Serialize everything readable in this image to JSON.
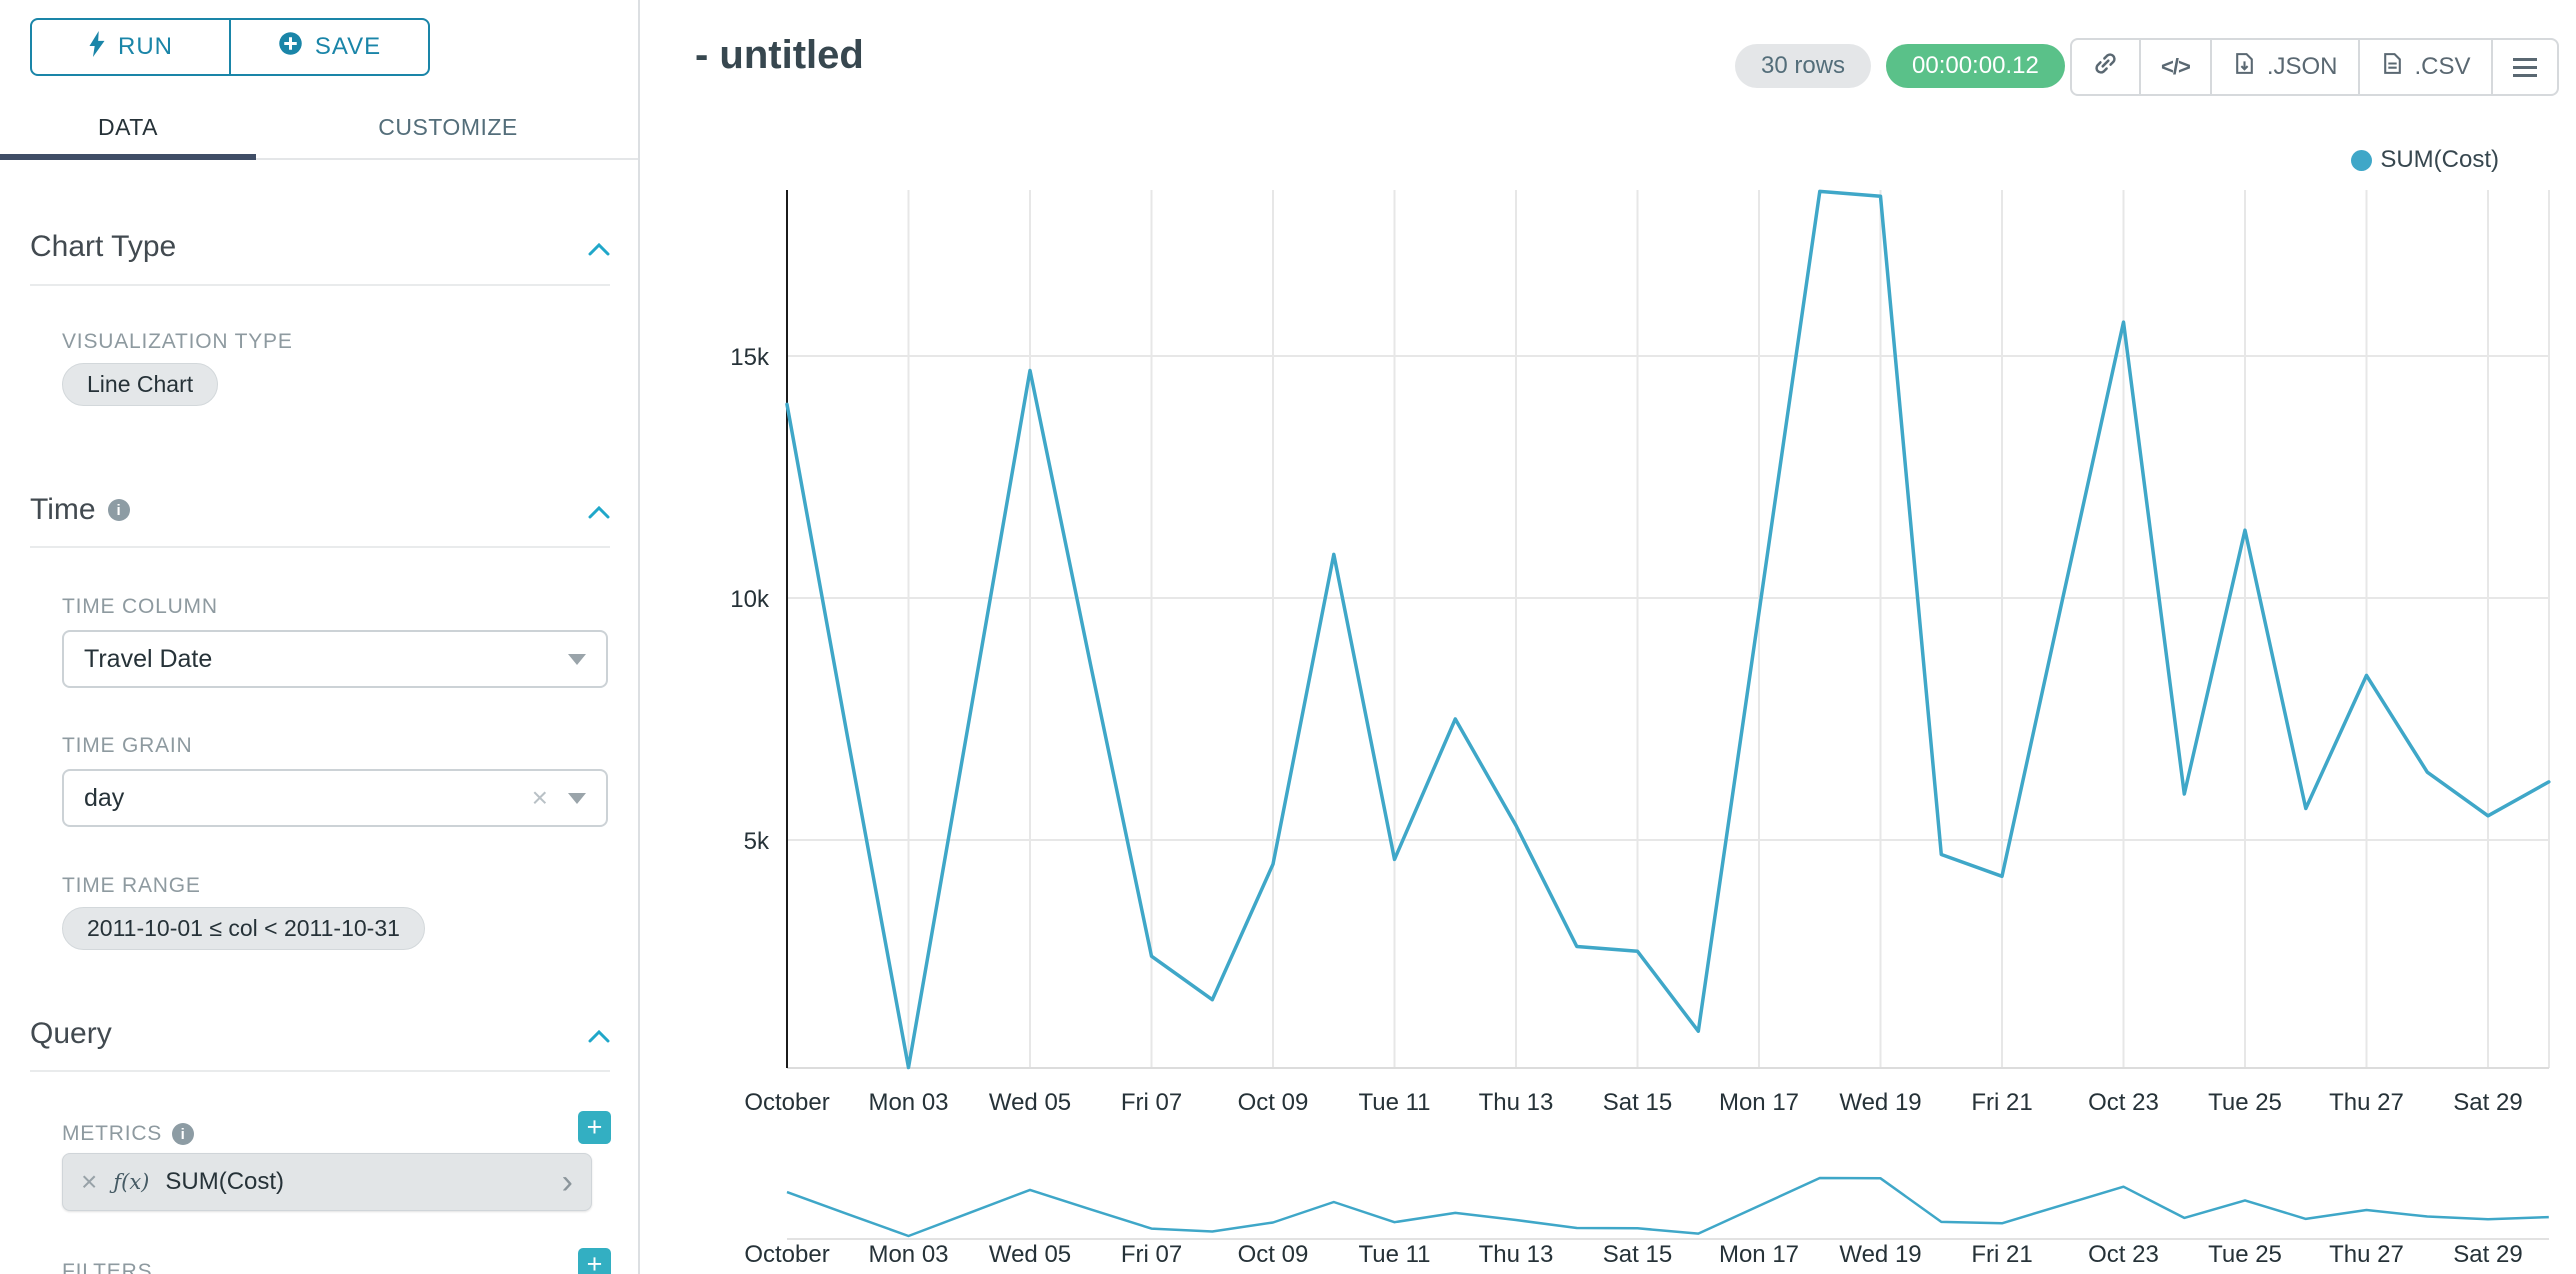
{
  "colors": {
    "accent_teal": "#1a85a8",
    "add_button": "#33afc2",
    "success_green": "#5ac189",
    "line": "#3fa7c8",
    "tab_underline": "#3f4d66"
  },
  "toolbar": {
    "run": "RUN",
    "save": "SAVE"
  },
  "tabs": {
    "data": "DATA",
    "customize": "CUSTOMIZE"
  },
  "panel": {
    "chart_type": {
      "title": "Chart Type",
      "visualization_type_label": "VISUALIZATION TYPE",
      "visualization_type_value": "Line Chart"
    },
    "time": {
      "title": "Time",
      "time_column_label": "TIME COLUMN",
      "time_column_value": "Travel Date",
      "time_grain_label": "TIME GRAIN",
      "time_grain_value": "day",
      "time_range_label": "TIME RANGE",
      "time_range_value": "2011-10-01 ≤ col < 2011-10-31"
    },
    "query": {
      "title": "Query",
      "metrics_label": "METRICS",
      "metric_fn": "ƒ(x)",
      "metric_value": "SUM(Cost)",
      "filters_label": "FILTERS"
    }
  },
  "header": {
    "title": "- untitled",
    "rows_badge": "30 rows",
    "timer": "00:00:00.12",
    "code_glyph": "</>",
    "export_json": ".JSON",
    "export_csv": ".CSV"
  },
  "chart_data": {
    "type": "line",
    "title": "",
    "xlabel": "",
    "ylabel": "",
    "legend_position": "top-right",
    "grid": true,
    "line_color": "#3fa7c8",
    "ylim": [
      0,
      18600
    ],
    "x": [
      "2011-10-01",
      "2011-10-02",
      "2011-10-03",
      "2011-10-04",
      "2011-10-05",
      "2011-10-06",
      "2011-10-07",
      "2011-10-08",
      "2011-10-09",
      "2011-10-10",
      "2011-10-11",
      "2011-10-12",
      "2011-10-13",
      "2011-10-14",
      "2011-10-15",
      "2011-10-16",
      "2011-10-17",
      "2011-10-18",
      "2011-10-19",
      "2011-10-20",
      "2011-10-21",
      "2011-10-22",
      "2011-10-23",
      "2011-10-24",
      "2011-10-25",
      "2011-10-26",
      "2011-10-27",
      "2011-10-28",
      "2011-10-29",
      "2011-10-30"
    ],
    "series": [
      {
        "name": "SUM(Cost)",
        "values": [
          14000,
          7100,
          300,
          7500,
          14700,
          8600,
          2600,
          1700,
          4500,
          10900,
          4600,
          7500,
          5300,
          2800,
          2700,
          1050,
          9700,
          18400,
          18300,
          4700,
          4250,
          10000,
          15700,
          5950,
          11400,
          5650,
          8400,
          6400,
          5500,
          6200
        ]
      }
    ],
    "x_tick_days": [
      1,
      3,
      5,
      7,
      9,
      11,
      13,
      15,
      17,
      19,
      21,
      23,
      25,
      27,
      29
    ],
    "x_tick_labels": [
      "October",
      "Mon 03",
      "Wed 05",
      "Fri 07",
      "Oct 09",
      "Tue 11",
      "Thu 13",
      "Sat 15",
      "Mon 17",
      "Wed 19",
      "Fri 21",
      "Oct 23",
      "Tue 25",
      "Thu 27",
      "Sat 29"
    ],
    "y_ticks": [
      {
        "label": "5k",
        "value": 5000
      },
      {
        "label": "10k",
        "value": 10000
      },
      {
        "label": "15k",
        "value": 15000
      }
    ],
    "has_mini_context_chart": true
  }
}
